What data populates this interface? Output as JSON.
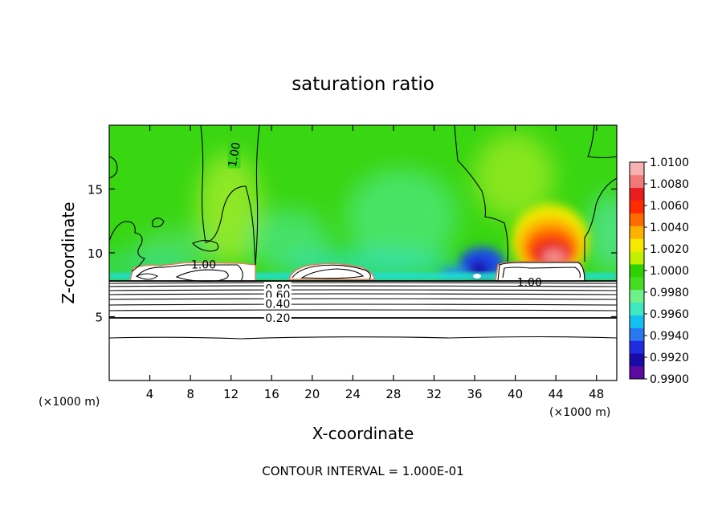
{
  "chart_data": {
    "type": "heatmap",
    "title": "saturation ratio",
    "xlabel": "X-coordinate",
    "ylabel": "Z-coordinate",
    "x_unit_left": "(×1000 m)",
    "x_unit_right": "(×1000 m)",
    "xlim": [
      0,
      50
    ],
    "ylim": [
      0,
      20
    ],
    "x_ticks": [
      4,
      8,
      12,
      16,
      20,
      24,
      28,
      32,
      36,
      40,
      44,
      48
    ],
    "y_ticks": [
      5,
      10,
      15
    ],
    "footer": "CONTOUR INTERVAL = 1.000E-01",
    "colorbar": {
      "min": 0.99,
      "max": 1.01,
      "labels": [
        "1.0100",
        "1.0080",
        "1.0060",
        "1.0040",
        "1.0020",
        "1.0000",
        "0.9980",
        "0.9960",
        "0.9940",
        "0.9920",
        "0.9900"
      ],
      "colors": [
        "#5a0aa0",
        "#1a0aa8",
        "#1f2ce0",
        "#2a78f0",
        "#14c0f0",
        "#3ee8c0",
        "#6ef08a",
        "#44dd22",
        "#2fd000",
        "#c2f000",
        "#f8e800",
        "#ffb000",
        "#ff6a00",
        "#ff2a00",
        "#e81e1e",
        "#f07878",
        "#f8b0b0"
      ]
    },
    "contour_labels": [
      {
        "text": "1.00",
        "x": 12.3,
        "z": 17.7
      },
      {
        "text": "1.00",
        "x": 9.3,
        "z": 9.1
      },
      {
        "text": "1.00",
        "x": 41.4,
        "z": 7.7
      },
      {
        "text": "0.80",
        "x": 16.6,
        "z": 7.2
      },
      {
        "text": "0.60",
        "x": 16.6,
        "z": 6.7
      },
      {
        "text": "0.40",
        "x": 16.6,
        "z": 6.0
      },
      {
        "text": "0.20",
        "x": 16.6,
        "z": 4.9
      }
    ],
    "grid": false
  }
}
